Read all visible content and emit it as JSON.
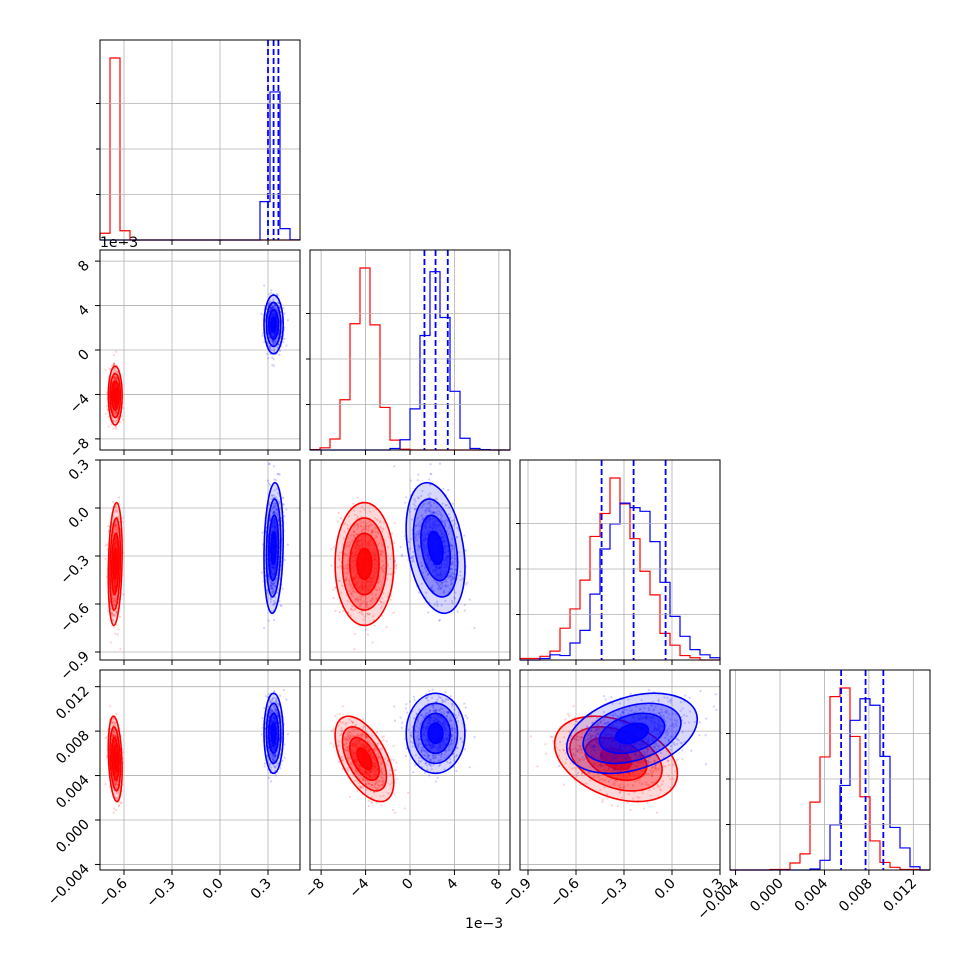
{
  "chart_data": {
    "type": "corner",
    "colors": {
      "red": "#ff0000",
      "blue": "#0000ff",
      "grid": "#b0b0b0",
      "axis": "#000000"
    },
    "params": [
      {
        "range": [
          -0.75,
          0.5
        ],
        "ticks": [
          "−0.6",
          "−0.3",
          "0.0",
          "0.3"
        ],
        "tick_values": [
          -0.6,
          -0.3,
          0.0,
          0.3
        ],
        "offset_label": ""
      },
      {
        "range": [
          -0.009,
          0.009
        ],
        "ticks": [
          "−8",
          "−4",
          "0",
          "4",
          "8"
        ],
        "tick_values": [
          -0.008,
          -0.004,
          0.0,
          0.004,
          0.008
        ],
        "offset_label": "1e−3"
      },
      {
        "range": [
          -0.95,
          0.3
        ],
        "ticks": [
          "−0.9",
          "−0.6",
          "−0.3",
          "0.0",
          "0.3"
        ],
        "tick_values": [
          -0.9,
          -0.6,
          -0.3,
          0.0,
          0.3
        ],
        "offset_label": ""
      },
      {
        "range": [
          -0.0045,
          0.0135
        ],
        "ticks": [
          "−0.004",
          "0.000",
          "0.004",
          "0.008",
          "0.012"
        ],
        "tick_values": [
          -0.004,
          0.0,
          0.004,
          0.008,
          0.012
        ],
        "offset_label": ""
      }
    ],
    "series": [
      {
        "color": "red",
        "mean": [
          -0.655,
          -0.0041,
          -0.35,
          0.0055
        ],
        "std": [
          0.018,
          0.0011,
          0.16,
          0.0016
        ],
        "correlation": [
          [
            1,
            0,
            0.2,
            -0.25
          ],
          [
            0,
            1,
            0,
            -0.55
          ],
          [
            0.2,
            0,
            1,
            -0.35
          ],
          [
            -0.25,
            -0.55,
            -0.35,
            1
          ]
        ],
        "quantiles": []
      },
      {
        "color": "blue",
        "mean": [
          0.335,
          0.0023,
          -0.25,
          0.0078
        ],
        "std": [
          0.025,
          0.0011,
          0.17,
          0.0015
        ],
        "correlation": [
          [
            1,
            0,
            0.15,
            0
          ],
          [
            0,
            1,
            -0.3,
            0
          ],
          [
            0.15,
            -0.3,
            1,
            0.35
          ],
          [
            0,
            0,
            0.35,
            1
          ]
        ],
        "quantiles": [
          [
            0.3,
            0.335,
            0.365
          ],
          [
            0.0013,
            0.0023,
            0.0034
          ],
          [
            -0.44,
            -0.24,
            -0.04
          ],
          [
            0.0055,
            0.0077,
            0.0093
          ]
        ]
      }
    ]
  }
}
